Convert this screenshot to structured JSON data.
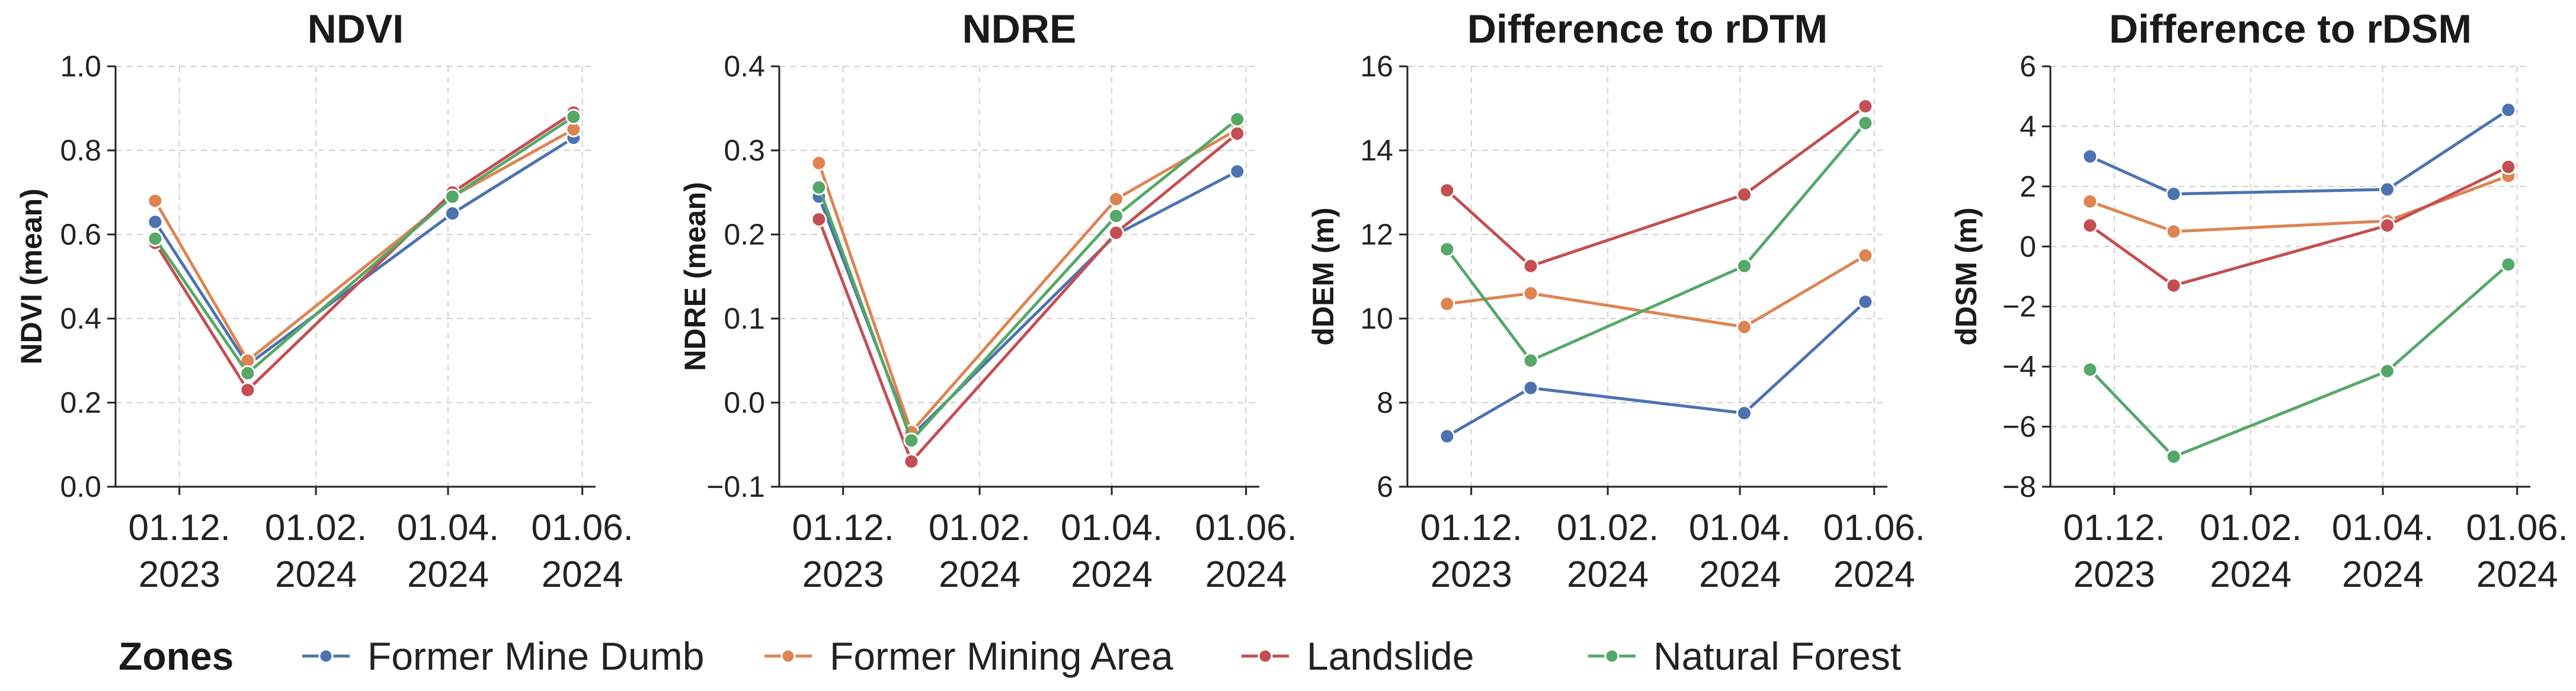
{
  "colors": {
    "Former Mine Dumb": "#4c72b0",
    "Former Mining Area": "#dd8452",
    "Landslide": "#c44e52",
    "Natural Forest": "#55a868"
  },
  "legend": {
    "title": "Zones",
    "items": [
      "Former Mine Dumb",
      "Former Mining Area",
      "Landslide",
      "Natural Forest"
    ]
  },
  "chart_data": [
    {
      "type": "line",
      "title": "NDVI",
      "ylabel": "NDVI (mean)",
      "xlabel": "",
      "xlim": [
        "2023-11-02",
        "2024-06-07"
      ],
      "ylim": [
        0.0,
        1.0
      ],
      "yticks": [
        0.0,
        0.2,
        0.4,
        0.6,
        0.8,
        1.0
      ],
      "ytick_labels": [
        "0.0",
        "0.2",
        "0.4",
        "0.6",
        "0.8",
        "1.0"
      ],
      "xticks": [
        "2023-12-01",
        "2024-02-01",
        "2024-04-01",
        "2024-06-01"
      ],
      "xtick_labels": [
        [
          "01.12.",
          "2023"
        ],
        [
          "01.02.",
          "2024"
        ],
        [
          "01.04.",
          "2024"
        ],
        [
          "01.06.",
          "2024"
        ]
      ],
      "grid": true,
      "series": [
        {
          "name": "Former Mine Dumb",
          "x": [
            "2023-11-20",
            "2024-01-01",
            "2024-04-03",
            "2024-05-28"
          ],
          "y": [
            0.63,
            0.29,
            0.65,
            0.83
          ]
        },
        {
          "name": "Former Mining Area",
          "x": [
            "2023-11-20",
            "2024-01-01",
            "2024-04-03",
            "2024-05-28"
          ],
          "y": [
            0.68,
            0.3,
            0.69,
            0.85
          ]
        },
        {
          "name": "Landslide",
          "x": [
            "2023-11-20",
            "2024-01-01",
            "2024-04-03",
            "2024-05-28"
          ],
          "y": [
            0.58,
            0.23,
            0.7,
            0.89
          ]
        },
        {
          "name": "Natural Forest",
          "x": [
            "2023-11-20",
            "2024-01-01",
            "2024-04-03",
            "2024-05-28"
          ],
          "y": [
            0.59,
            0.27,
            0.69,
            0.88
          ]
        }
      ]
    },
    {
      "type": "line",
      "title": "NDRE",
      "ylabel": "NDRE (mean)",
      "xlabel": "",
      "xlim": [
        "2023-11-02",
        "2024-06-07"
      ],
      "ylim": [
        -0.1,
        0.4
      ],
      "yticks": [
        -0.1,
        0.0,
        0.1,
        0.2,
        0.3,
        0.4
      ],
      "ytick_labels": [
        "−0.1",
        "0.0",
        "0.1",
        "0.2",
        "0.3",
        "0.4"
      ],
      "xticks": [
        "2023-12-01",
        "2024-02-01",
        "2024-04-01",
        "2024-06-01"
      ],
      "xtick_labels": [
        [
          "01.12.",
          "2023"
        ],
        [
          "01.02.",
          "2024"
        ],
        [
          "01.04.",
          "2024"
        ],
        [
          "01.06.",
          "2024"
        ]
      ],
      "grid": true,
      "series": [
        {
          "name": "Former Mine Dumb",
          "x": [
            "2023-11-20",
            "2024-01-01",
            "2024-04-03",
            "2024-05-28"
          ],
          "y": [
            0.245,
            -0.04,
            0.2,
            0.275
          ]
        },
        {
          "name": "Former Mining Area",
          "x": [
            "2023-11-20",
            "2024-01-01",
            "2024-04-03",
            "2024-05-28"
          ],
          "y": [
            0.285,
            -0.035,
            0.242,
            0.325
          ]
        },
        {
          "name": "Landslide",
          "x": [
            "2023-11-20",
            "2024-01-01",
            "2024-04-03",
            "2024-05-28"
          ],
          "y": [
            0.218,
            -0.07,
            0.202,
            0.32
          ]
        },
        {
          "name": "Natural Forest",
          "x": [
            "2023-11-20",
            "2024-01-01",
            "2024-04-03",
            "2024-05-28"
          ],
          "y": [
            0.256,
            -0.045,
            0.222,
            0.337
          ]
        }
      ]
    },
    {
      "type": "line",
      "title": "Difference to rDTM",
      "ylabel": "dDEM (m)",
      "xlabel": "",
      "xlim": [
        "2023-11-02",
        "2024-06-07"
      ],
      "ylim": [
        6,
        16
      ],
      "yticks": [
        6,
        8,
        10,
        12,
        14,
        16
      ],
      "ytick_labels": [
        "6",
        "8",
        "10",
        "12",
        "14",
        "16"
      ],
      "xticks": [
        "2023-12-01",
        "2024-02-01",
        "2024-04-01",
        "2024-06-01"
      ],
      "xtick_labels": [
        [
          "01.12.",
          "2023"
        ],
        [
          "01.02.",
          "2024"
        ],
        [
          "01.04.",
          "2024"
        ],
        [
          "01.06.",
          "2024"
        ]
      ],
      "grid": true,
      "series": [
        {
          "name": "Former Mine Dumb",
          "x": [
            "2023-11-20",
            "2023-12-28",
            "2024-04-03",
            "2024-05-28"
          ],
          "y": [
            7.2,
            8.35,
            7.75,
            10.4
          ]
        },
        {
          "name": "Former Mining Area",
          "x": [
            "2023-11-20",
            "2023-12-28",
            "2024-04-03",
            "2024-05-28"
          ],
          "y": [
            10.35,
            10.6,
            9.8,
            11.5
          ]
        },
        {
          "name": "Landslide",
          "x": [
            "2023-11-20",
            "2023-12-28",
            "2024-04-03",
            "2024-05-28"
          ],
          "y": [
            13.05,
            11.25,
            12.95,
            15.05
          ]
        },
        {
          "name": "Natural Forest",
          "x": [
            "2023-11-20",
            "2023-12-28",
            "2024-04-03",
            "2024-05-28"
          ],
          "y": [
            11.65,
            9.0,
            11.25,
            14.65
          ]
        }
      ]
    },
    {
      "type": "line",
      "title": "Difference to rDSM",
      "ylabel": "dDSM (m)",
      "xlabel": "",
      "xlim": [
        "2023-11-02",
        "2024-06-07"
      ],
      "ylim": [
        -8,
        6
      ],
      "yticks": [
        -8,
        -6,
        -4,
        -2,
        0,
        2,
        4,
        6
      ],
      "ytick_labels": [
        "−8",
        "−6",
        "−4",
        "−2",
        "0",
        "2",
        "4",
        "6"
      ],
      "xticks": [
        "2023-12-01",
        "2024-02-01",
        "2024-04-01",
        "2024-06-01"
      ],
      "xtick_labels": [
        [
          "01.12.",
          "2023"
        ],
        [
          "01.02.",
          "2024"
        ],
        [
          "01.04.",
          "2024"
        ],
        [
          "01.06.",
          "2024"
        ]
      ],
      "grid": true,
      "series": [
        {
          "name": "Former Mine Dumb",
          "x": [
            "2023-11-20",
            "2023-12-28",
            "2024-04-03",
            "2024-05-28"
          ],
          "y": [
            3.0,
            1.75,
            1.9,
            4.55
          ]
        },
        {
          "name": "Former Mining Area",
          "x": [
            "2023-11-20",
            "2023-12-28",
            "2024-04-03",
            "2024-05-28"
          ],
          "y": [
            1.5,
            0.5,
            0.85,
            2.35
          ]
        },
        {
          "name": "Landslide",
          "x": [
            "2023-11-20",
            "2023-12-28",
            "2024-04-03",
            "2024-05-28"
          ],
          "y": [
            0.7,
            -1.3,
            0.7,
            2.65
          ]
        },
        {
          "name": "Natural Forest",
          "x": [
            "2023-11-20",
            "2023-12-28",
            "2024-04-03",
            "2024-05-28"
          ],
          "y": [
            -4.1,
            -7.0,
            -4.15,
            -0.6
          ]
        }
      ]
    }
  ]
}
